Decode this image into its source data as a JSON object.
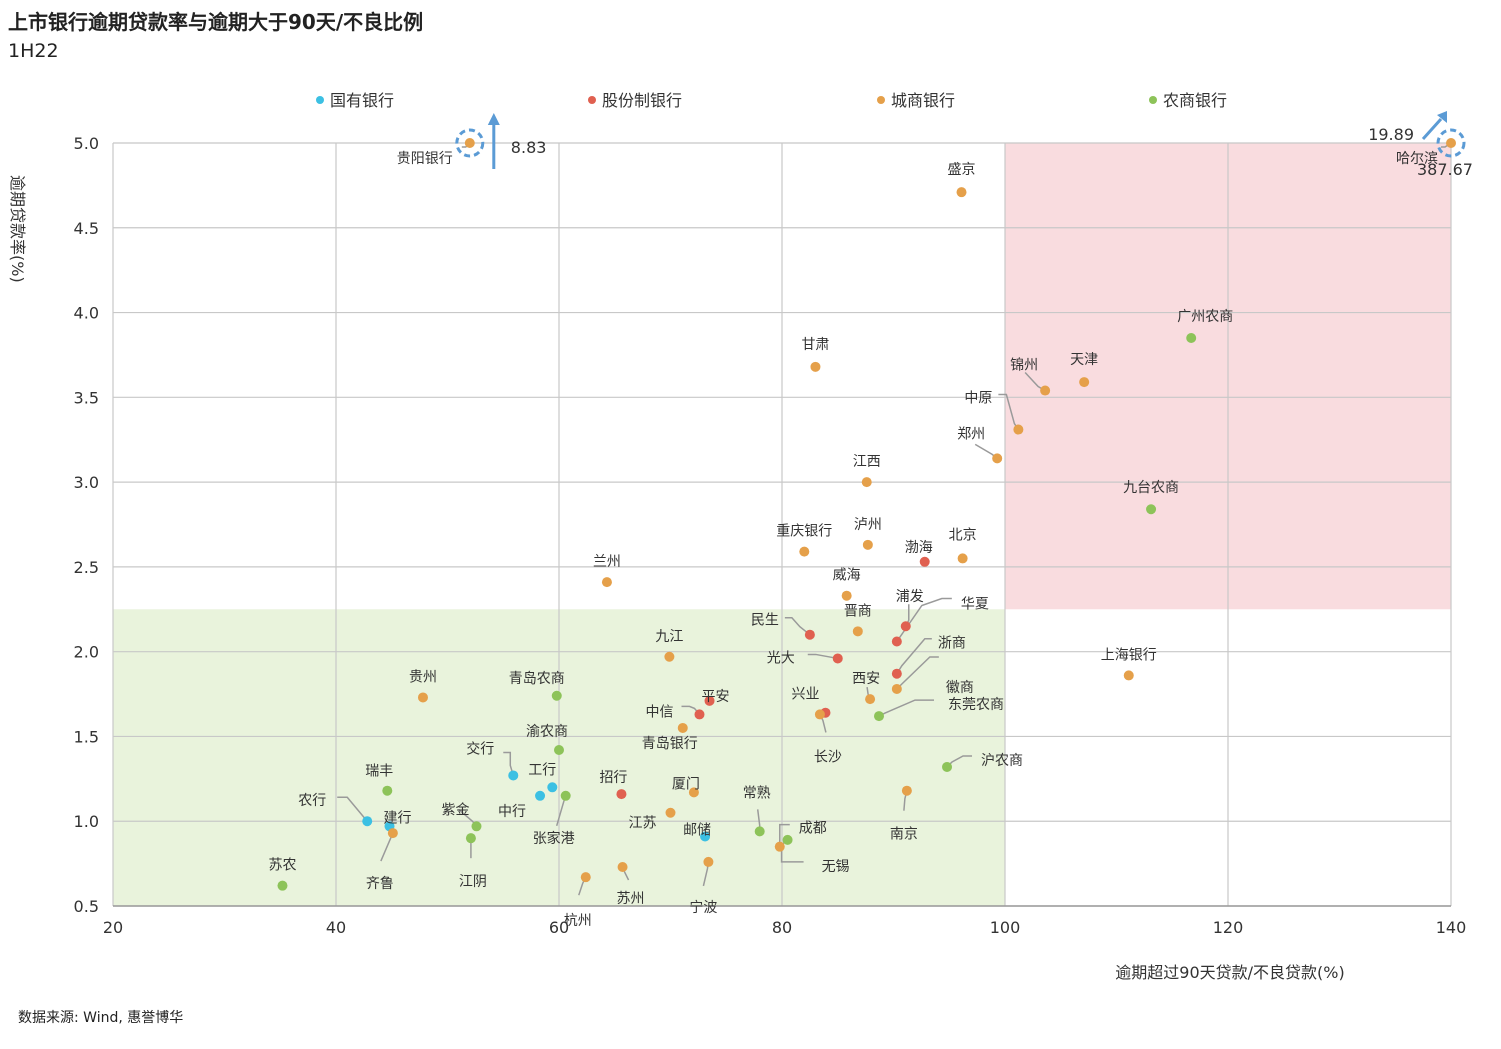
{
  "title": "上市银行逾期贷款率与逾期大于90天/不良比例",
  "subtitle": "1H22",
  "source": "数据来源: Wind, 惠誉博华",
  "colors": {
    "国有银行": "#3cc0e3",
    "股份制银行": "#e06050",
    "城商银行": "#e5a04a",
    "农商银行": "#8dc359",
    "pink_zone": "#f9dcdf",
    "green_zone": "#e9f3dc",
    "grid": "#c8c8c8",
    "leader": "#9a9a9a",
    "arrow": "#5b9bd5"
  },
  "chart_data": {
    "type": "scatter",
    "title": "上市银行逾期贷款率与逾期大于90天/不良比例",
    "subtitle": "1H22",
    "xlabel": "逾期超过90天贷款/不良贷款(%)",
    "ylabel": "逾期贷款率(%)",
    "xlim": [
      20,
      140
    ],
    "ylim": [
      0.5,
      5.0
    ],
    "xticks": [
      20,
      40,
      60,
      80,
      100,
      120,
      140
    ],
    "yticks": [
      "0.5",
      "1.0",
      "1.5",
      "2.0",
      "2.5",
      "3.0",
      "3.5",
      "4.0",
      "4.5",
      "5.0"
    ],
    "grid": true,
    "legend_position": "top",
    "legend": [
      "国有银行",
      "股份制银行",
      "城商银行",
      "农商银行"
    ],
    "zones": [
      {
        "x": [
          100,
          140
        ],
        "y": [
          2.25,
          5.0
        ],
        "color": "pink_zone"
      },
      {
        "x": [
          20,
          100
        ],
        "y": [
          0.5,
          2.25
        ],
        "color": "green_zone"
      }
    ],
    "series": [
      {
        "name": "国有银行",
        "points": [
          {
            "label": "工行",
            "x": 59.4,
            "y": 1.2
          },
          {
            "label": "建行",
            "x": 44.8,
            "y": 0.97
          },
          {
            "label": "农行",
            "x": 42.8,
            "y": 1.0
          },
          {
            "label": "中行",
            "x": 58.3,
            "y": 1.15
          },
          {
            "label": "交行",
            "x": 55.9,
            "y": 1.27
          },
          {
            "label": "邮储",
            "x": 73.1,
            "y": 0.91
          }
        ]
      },
      {
        "name": "股份制银行",
        "points": [
          {
            "label": "招行",
            "x": 65.6,
            "y": 1.16
          },
          {
            "label": "中信",
            "x": 72.6,
            "y": 1.63
          },
          {
            "label": "平安",
            "x": 73.5,
            "y": 1.71
          },
          {
            "label": "兴业",
            "x": 83.9,
            "y": 1.64
          },
          {
            "label": "光大",
            "x": 85.0,
            "y": 1.96
          },
          {
            "label": "民生",
            "x": 82.5,
            "y": 2.1
          },
          {
            "label": "华夏",
            "x": 90.3,
            "y": 2.06
          },
          {
            "label": "浦发",
            "x": 91.1,
            "y": 2.15
          },
          {
            "label": "浙商",
            "x": 90.3,
            "y": 1.87
          },
          {
            "label": "渤海",
            "x": 92.8,
            "y": 2.53
          }
        ]
      },
      {
        "name": "城商银行",
        "points": [
          {
            "label": "贵阳银行",
            "x": 52.0,
            "y": 5.0,
            "actual_y": "8.83"
          },
          {
            "label": "哈尔滨",
            "x": 140.0,
            "y": 5.0,
            "actual_x": "387.67",
            "actual_y": "19.89"
          },
          {
            "label": "盛京",
            "x": 96.1,
            "y": 4.71
          },
          {
            "label": "甘肃",
            "x": 83.0,
            "y": 3.68
          },
          {
            "label": "锦州",
            "x": 103.6,
            "y": 3.54
          },
          {
            "label": "天津",
            "x": 107.1,
            "y": 3.59
          },
          {
            "label": "中原",
            "x": 101.2,
            "y": 3.31
          },
          {
            "label": "郑州",
            "x": 99.3,
            "y": 3.14
          },
          {
            "label": "江西",
            "x": 87.6,
            "y": 3.0
          },
          {
            "label": "重庆银行",
            "x": 82.0,
            "y": 2.59
          },
          {
            "label": "泸州",
            "x": 87.7,
            "y": 2.63
          },
          {
            "label": "北京",
            "x": 96.2,
            "y": 2.55
          },
          {
            "label": "兰州",
            "x": 64.3,
            "y": 2.41
          },
          {
            "label": "威海",
            "x": 85.8,
            "y": 2.33
          },
          {
            "label": "晋商",
            "x": 86.8,
            "y": 2.12
          },
          {
            "label": "上海银行",
            "x": 111.1,
            "y": 1.86
          },
          {
            "label": "九江",
            "x": 69.9,
            "y": 1.97
          },
          {
            "label": "贵州",
            "x": 47.8,
            "y": 1.73
          },
          {
            "label": "西安",
            "x": 87.9,
            "y": 1.72
          },
          {
            "label": "徽商",
            "x": 90.3,
            "y": 1.78
          },
          {
            "label": "长沙",
            "x": 83.4,
            "y": 1.63
          },
          {
            "label": "青岛银行",
            "x": 71.1,
            "y": 1.55
          },
          {
            "label": "南京",
            "x": 91.2,
            "y": 1.18
          },
          {
            "label": "厦门",
            "x": 72.1,
            "y": 1.17
          },
          {
            "label": "江苏",
            "x": 70.0,
            "y": 1.05
          },
          {
            "label": "齐鲁",
            "x": 45.1,
            "y": 0.93
          },
          {
            "label": "成都",
            "x": 79.8,
            "y": 0.85
          },
          {
            "label": "苏州",
            "x": 65.7,
            "y": 0.73
          },
          {
            "label": "宁波",
            "x": 73.4,
            "y": 0.76
          },
          {
            "label": "杭州",
            "x": 62.4,
            "y": 0.67
          }
        ]
      },
      {
        "name": "农商银行",
        "points": [
          {
            "label": "广州农商",
            "x": 116.7,
            "y": 3.85
          },
          {
            "label": "九台农商",
            "x": 113.1,
            "y": 2.84
          },
          {
            "label": "青岛农商",
            "x": 59.8,
            "y": 1.74
          },
          {
            "label": "东莞农商",
            "x": 88.7,
            "y": 1.62
          },
          {
            "label": "渝农商",
            "x": 60.0,
            "y": 1.42
          },
          {
            "label": "沪农商",
            "x": 94.8,
            "y": 1.32
          },
          {
            "label": "瑞丰",
            "x": 44.6,
            "y": 1.18
          },
          {
            "label": "张家港",
            "x": 60.6,
            "y": 1.15
          },
          {
            "label": "紫金",
            "x": 52.6,
            "y": 0.97
          },
          {
            "label": "江阴",
            "x": 52.1,
            "y": 0.9
          },
          {
            "label": "常熟",
            "x": 78.0,
            "y": 0.94
          },
          {
            "label": "无锡",
            "x": 80.5,
            "y": 0.89
          },
          {
            "label": "苏农",
            "x": 35.2,
            "y": 0.62
          }
        ]
      }
    ]
  }
}
